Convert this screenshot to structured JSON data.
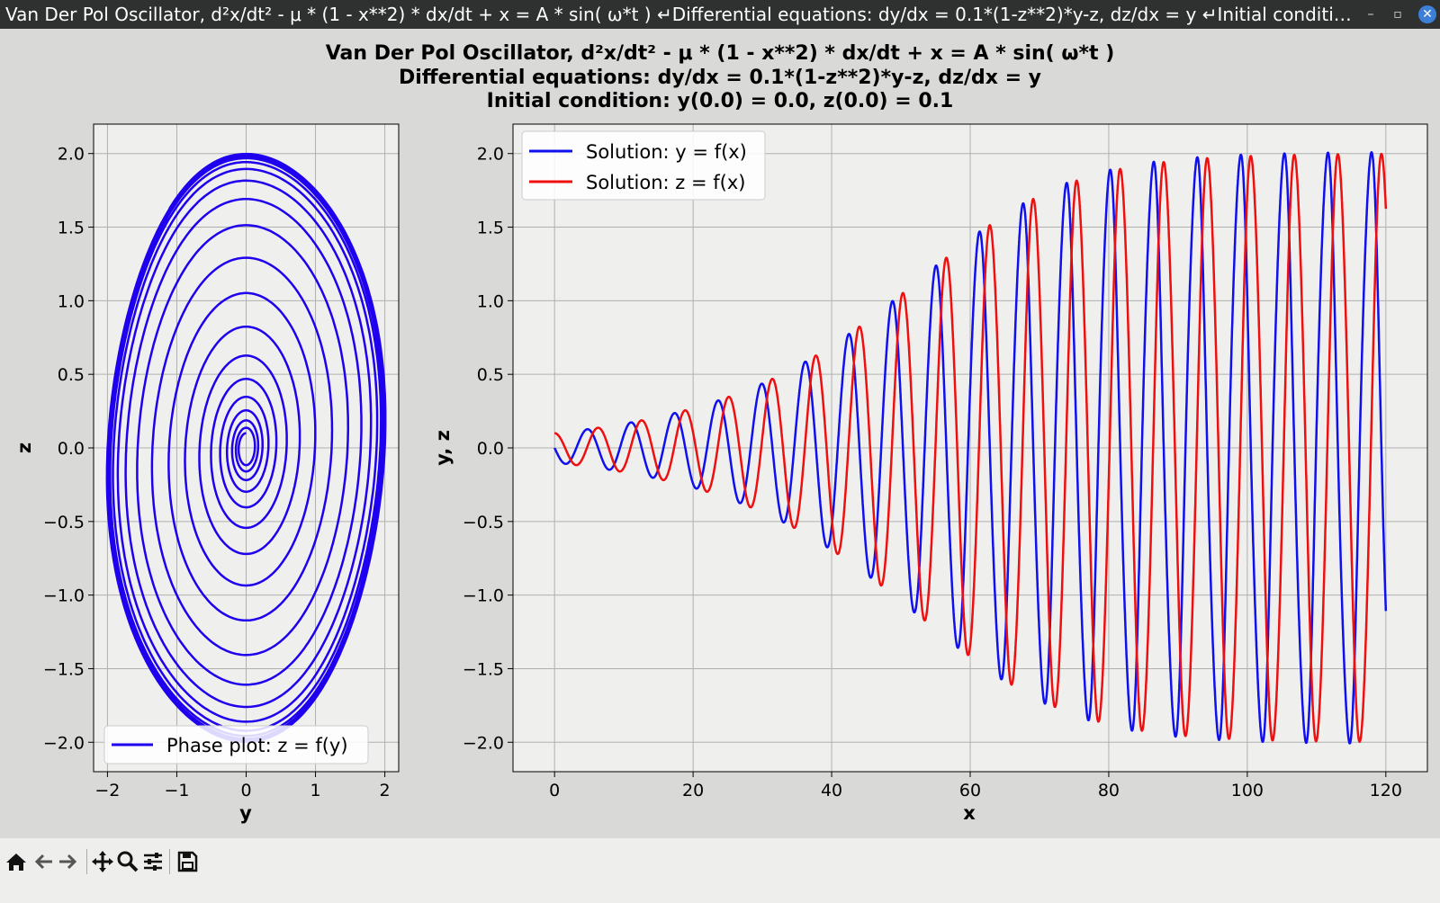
{
  "window": {
    "title": "Van Der Pol Oscillator, d²x/dt² -  μ * (1 - x**2) * dx/dt + x = A * sin( ω*t ) ↵Differential equations:  dy/dx = 0.1*(1-z**2)*y-z,  dz/dx = y ↵Initial conditi…",
    "minimize_glyph": "–",
    "maximize_glyph": "▫",
    "close_glyph": "✕"
  },
  "figure": {
    "suptitle_lines": [
      "Van Der Pol Oscillator, d²x/dt² -  μ * (1 - x**2) * dx/dt + x = A * sin( ω*t )",
      "Differential equations:  dy/dx = 0.1*(1-z**2)*y-z,  dz/dx = y",
      "Initial condition: y(0.0) = 0.0,  z(0.0) = 0.1"
    ]
  },
  "chart_data": [
    {
      "type": "line",
      "subtype": "phase",
      "xlabel": "y",
      "ylabel": "z",
      "xlim": [
        -2.2,
        2.2
      ],
      "ylim": [
        -2.2,
        2.2
      ],
      "xticks": [
        -2,
        -1,
        0,
        1,
        2
      ],
      "yticks": [
        -2.0,
        -1.5,
        -1.0,
        -0.5,
        0.0,
        0.5,
        1.0,
        1.5,
        2.0
      ],
      "grid": true,
      "legend_position": "lower-center",
      "color": "#1f00ee",
      "series": [
        {
          "name": "Phase plot: z = f(y)",
          "equation": "dy/dx = 0.1*(1-z**2)*y-z, dz/dx = y",
          "y0": 0.0,
          "z0": 0.1,
          "x_range": [
            0,
            120
          ]
        }
      ]
    },
    {
      "type": "line",
      "xlabel": "x",
      "ylabel": "y, z",
      "xlim": [
        -6,
        126
      ],
      "ylim": [
        -2.2,
        2.2
      ],
      "xticks": [
        0,
        20,
        40,
        60,
        80,
        100,
        120
      ],
      "yticks": [
        -2.0,
        -1.5,
        -1.0,
        -0.5,
        0.0,
        0.5,
        1.0,
        1.5,
        2.0
      ],
      "grid": true,
      "legend_position": "upper-left",
      "series": [
        {
          "name": "Solution: y = f(x)",
          "color": "#1010ee",
          "equation": "dy/dx = 0.1*(1-z**2)*y-z",
          "y0": 0.0,
          "x_range": [
            0,
            120
          ]
        },
        {
          "name": "Solution: z = f(x)",
          "color": "#ee1010",
          "equation": "dz/dx = y",
          "z0": 0.1,
          "x_range": [
            0,
            120
          ]
        }
      ]
    }
  ],
  "toolbar": {
    "buttons": [
      {
        "name": "home-button",
        "icon": "home-icon"
      },
      {
        "name": "back-button",
        "icon": "back-arrow-icon"
      },
      {
        "name": "forward-button",
        "icon": "forward-arrow-icon"
      },
      {
        "name": "pan-button",
        "icon": "pan-arrows-icon"
      },
      {
        "name": "zoom-button",
        "icon": "magnifier-icon"
      },
      {
        "name": "configure-subplots-button",
        "icon": "sliders-icon"
      },
      {
        "name": "save-button",
        "icon": "floppy-disk-icon"
      }
    ]
  }
}
